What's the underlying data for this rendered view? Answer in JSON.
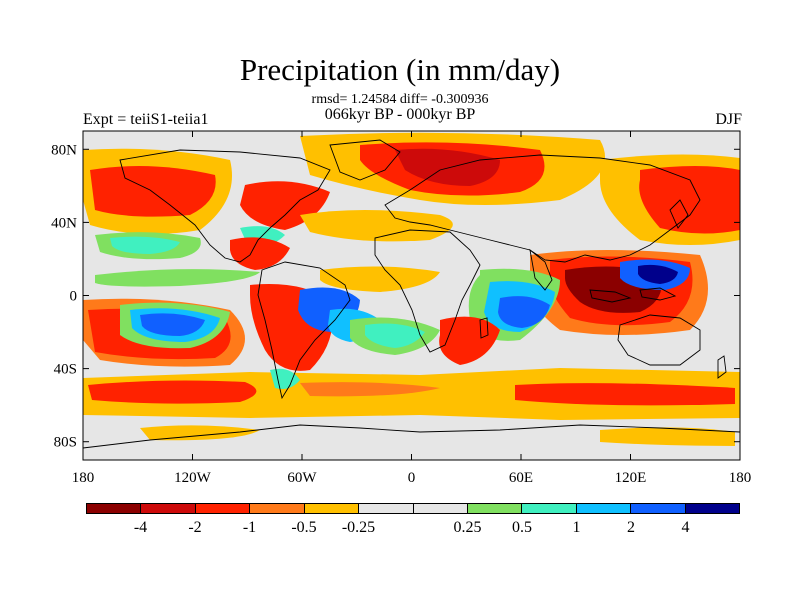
{
  "title": "Precipitation (in mm/day)",
  "stats": "rmsd= 1.24584 diff= -0.300936",
  "period": "066kyr BP - 000kyr BP",
  "expt": "Expt = teiiS1-teiia1",
  "season": "DJF",
  "lat_labels": [
    {
      "text": "80N",
      "lat": 80
    },
    {
      "text": "40N",
      "lat": 40
    },
    {
      "text": "0",
      "lat": 0
    },
    {
      "text": "40S",
      "lat": -40
    },
    {
      "text": "80S",
      "lat": -80
    }
  ],
  "lon_labels": [
    {
      "text": "180",
      "lon": -180
    },
    {
      "text": "120W",
      "lon": -120
    },
    {
      "text": "60W",
      "lon": -60
    },
    {
      "text": "0",
      "lon": 0
    },
    {
      "text": "60E",
      "lon": 60
    },
    {
      "text": "120E",
      "lon": 120
    },
    {
      "text": "180",
      "lon": 180
    }
  ],
  "colorbar": {
    "colors": [
      "#8b0000",
      "#cd0a0a",
      "#ff2200",
      "#ff7a1a",
      "#ffc000",
      "#e6e6e6",
      "#e6e6e6",
      "#80e060",
      "#40f0c0",
      "#10c0ff",
      "#1060ff",
      "#00008b"
    ],
    "labels": [
      "-4",
      "-2",
      "-1",
      "-0.5",
      "-0.25",
      "0.25",
      "0.5",
      "1",
      "2",
      "4"
    ]
  },
  "palette": {
    "dark_red": "#8b0000",
    "red": "#cd0a0a",
    "red_orange": "#ff2200",
    "orange": "#ff7a1a",
    "yellow": "#ffc000",
    "neutral": "#e6e6e6",
    "green": "#80e060",
    "cyan": "#40f0c0",
    "sky": "#10c0ff",
    "blue": "#1060ff",
    "navy": "#00008b"
  },
  "map": {
    "projection": "cylindrical-equidistant",
    "lon_range": [
      -180,
      180
    ],
    "lat_range": [
      -90,
      90
    ]
  }
}
